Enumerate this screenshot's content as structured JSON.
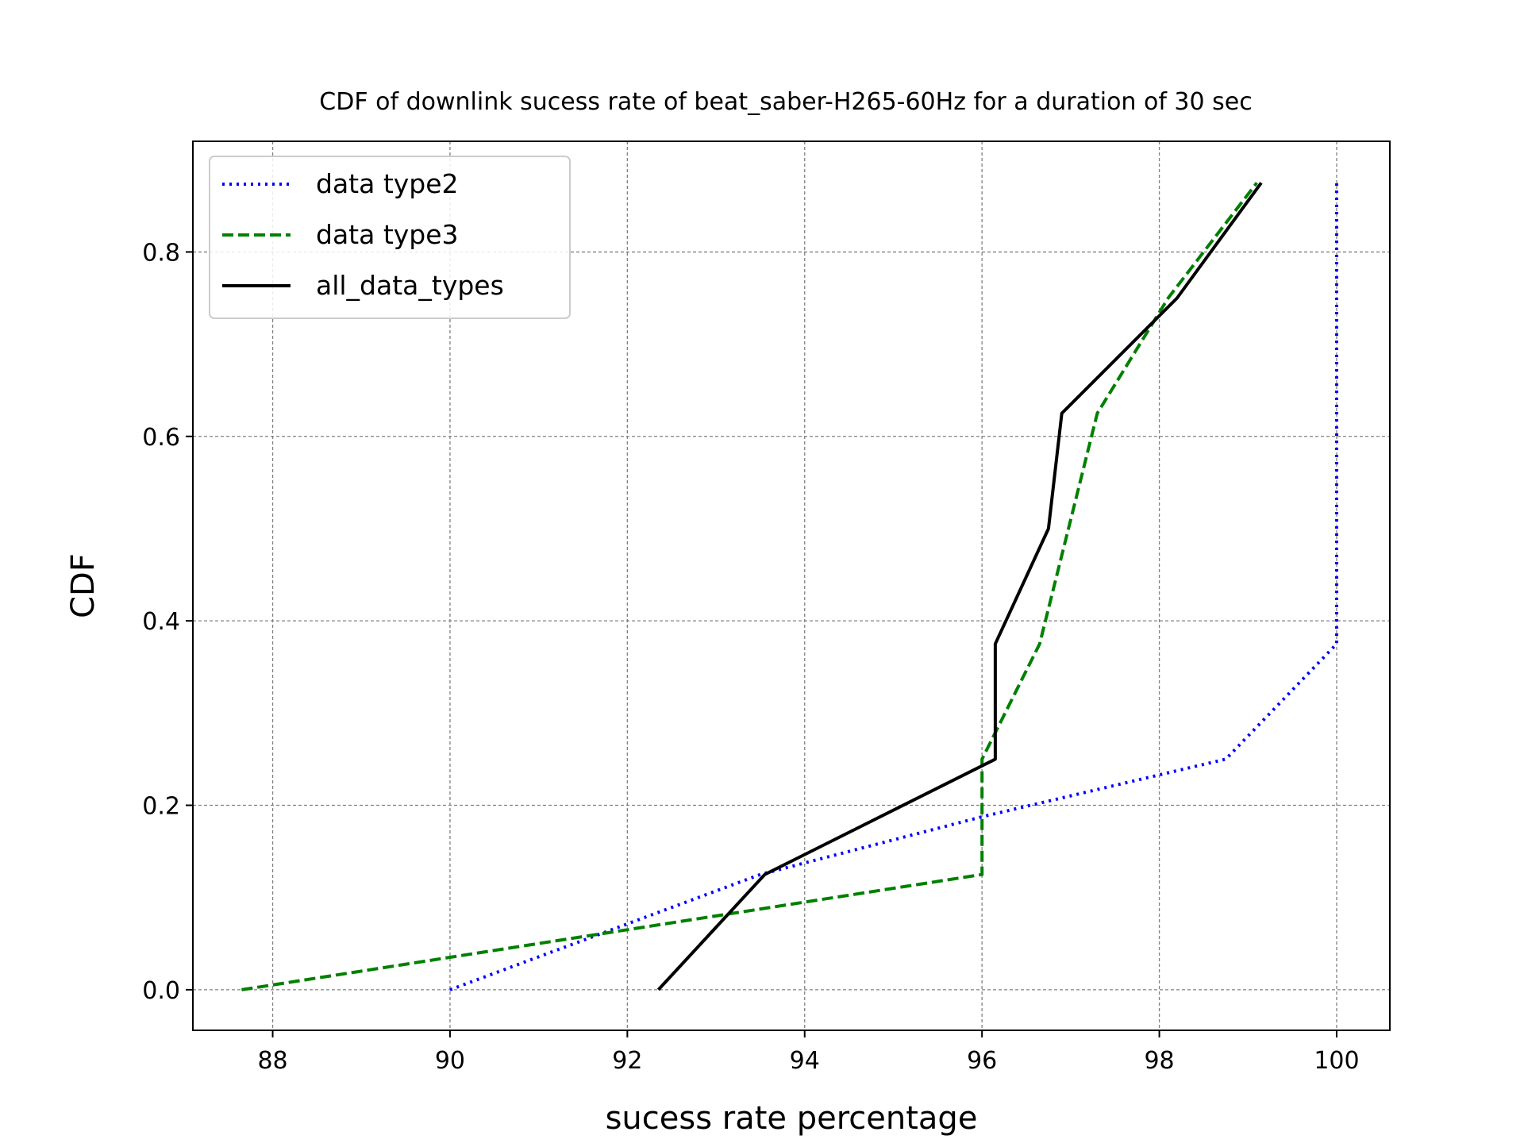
{
  "chart_data": {
    "type": "line",
    "title": "CDF of downlink sucess rate of beat_saber-H265-60Hz for a duration of 30 sec",
    "xlabel": "sucess rate percentage",
    "ylabel": "CDF",
    "xlim": [
      87.1,
      100.6
    ],
    "ylim": [
      -0.044,
      0.92
    ],
    "xticks": [
      88,
      90,
      92,
      94,
      96,
      98,
      100
    ],
    "xtick_labels": [
      "88",
      "90",
      "92",
      "94",
      "96",
      "98",
      "100"
    ],
    "yticks": [
      0.0,
      0.2,
      0.4,
      0.6,
      0.8
    ],
    "ytick_labels": [
      "0.0",
      "0.2",
      "0.4",
      "0.6",
      "0.8"
    ],
    "grid": true,
    "legend_position": "upper-left",
    "series": [
      {
        "name": "data type2",
        "color": "#0000ff",
        "style": "dotted",
        "x": [
          90.0,
          93.5,
          96.0,
          98.75,
          100.0,
          100.0
        ],
        "y": [
          0.0,
          0.125,
          0.1875,
          0.25,
          0.375,
          0.875
        ]
      },
      {
        "name": "data type3",
        "color": "#008000",
        "style": "dashed",
        "x": [
          87.65,
          96.0,
          96.0,
          96.65,
          97.3,
          98.1,
          99.1
        ],
        "y": [
          0.0,
          0.125,
          0.25,
          0.375,
          0.625,
          0.75,
          0.875
        ]
      },
      {
        "name": "all_data_types",
        "color": "#000000",
        "style": "solid",
        "x": [
          92.35,
          93.55,
          96.15,
          96.15,
          96.75,
          96.9,
          98.2,
          99.15
        ],
        "y": [
          0.0,
          0.125,
          0.25,
          0.375,
          0.5,
          0.625,
          0.75,
          0.875
        ]
      }
    ]
  }
}
